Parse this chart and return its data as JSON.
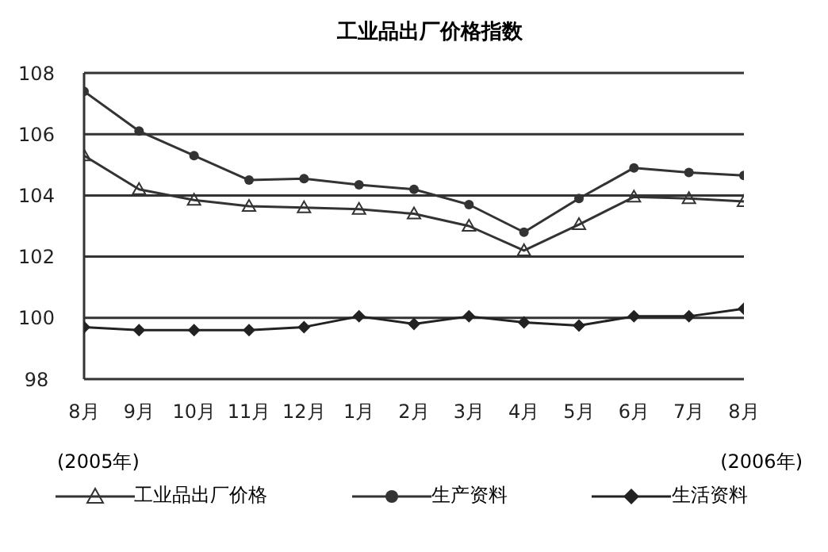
{
  "chart_data": {
    "type": "line",
    "title": "工业品出厂价格指数",
    "categories": [
      "8月",
      "9月",
      "10月",
      "11月",
      "12月",
      "1月",
      "2月",
      "3月",
      "4月",
      "5月",
      "6月",
      "7月",
      "8月"
    ],
    "series": [
      {
        "name": "工业品出厂价格",
        "color": "#333333",
        "marker": "triangle",
        "values": [
          105.3,
          104.2,
          103.85,
          103.65,
          103.6,
          103.55,
          103.4,
          103.0,
          102.2,
          103.05,
          103.95,
          103.9,
          103.8
        ]
      },
      {
        "name": "生产资料",
        "color": "#333333",
        "marker": "circle",
        "values": [
          107.4,
          106.1,
          105.3,
          104.5,
          104.55,
          104.35,
          104.2,
          103.7,
          102.8,
          103.9,
          104.9,
          104.75,
          104.65
        ]
      },
      {
        "name": "生活资料",
        "color": "#222222",
        "marker": "diamond",
        "values": [
          99.7,
          99.6,
          99.6,
          99.6,
          99.7,
          100.05,
          99.8,
          100.05,
          99.85,
          99.75,
          100.05,
          100.05,
          100.3
        ]
      }
    ],
    "ylim": [
      98,
      108
    ],
    "yticks": [
      98,
      100,
      102,
      104,
      106,
      108
    ],
    "grid": "y",
    "legend": "bottom",
    "line_style": "solid",
    "annotations": [
      "(2005年)",
      "(2006年)"
    ]
  }
}
